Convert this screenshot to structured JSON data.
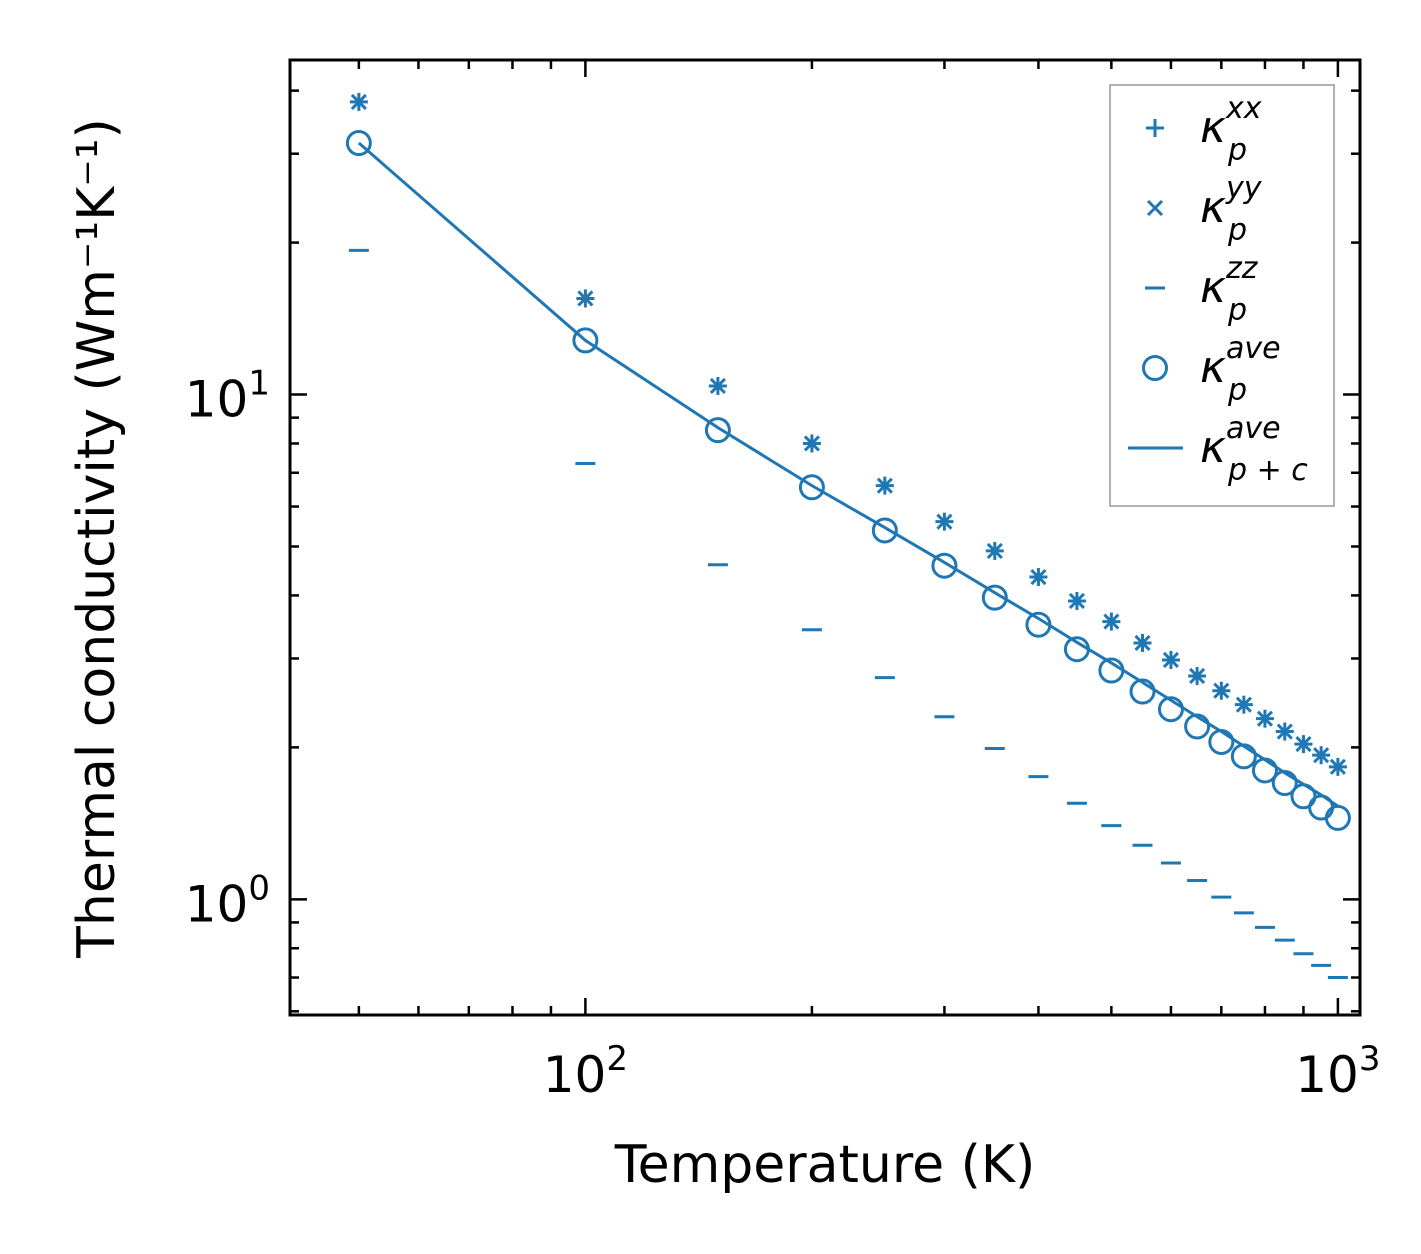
{
  "chart_data": {
    "type": "scatter",
    "xlabel": "Temperature (K)",
    "ylabel": "Thermal conductivity (Wm⁻¹K⁻¹)",
    "xscale": "log",
    "yscale": "log",
    "xlim": [
      40.5,
      1070
    ],
    "ylim": [
      0.59,
      46
    ],
    "x_ticks": [
      {
        "value": 100,
        "base": "10",
        "exp": "2"
      },
      {
        "value": 1000,
        "base": "10",
        "exp": "3"
      }
    ],
    "y_ticks": [
      {
        "value": 1,
        "base": "10",
        "exp": "0"
      },
      {
        "value": 10,
        "base": "10",
        "exp": "1"
      }
    ],
    "color": "#1f77b4",
    "x": [
      50,
      100,
      150,
      200,
      250,
      300,
      350,
      400,
      450,
      500,
      550,
      600,
      650,
      700,
      750,
      800,
      850,
      900,
      950,
      1000
    ],
    "series": [
      {
        "name": "kappa_p^xx",
        "label_base": "κ",
        "label_sup": "xx",
        "label_sub": "p",
        "marker": "plus",
        "values": [
          38,
          15.5,
          10.4,
          8.0,
          6.6,
          5.6,
          4.9,
          4.35,
          3.9,
          3.55,
          3.22,
          2.98,
          2.77,
          2.59,
          2.43,
          2.28,
          2.15,
          2.03,
          1.93,
          1.83
        ]
      },
      {
        "name": "kappa_p^yy",
        "label_base": "κ",
        "label_sup": "yy",
        "label_sub": "p",
        "marker": "x",
        "values": [
          38,
          15.5,
          10.4,
          8.0,
          6.6,
          5.6,
          4.9,
          4.35,
          3.9,
          3.55,
          3.22,
          2.98,
          2.77,
          2.59,
          2.43,
          2.28,
          2.15,
          2.03,
          1.93,
          1.83
        ]
      },
      {
        "name": "kappa_p^zz",
        "label_base": "κ",
        "label_sup": "zz",
        "label_sub": "p",
        "marker": "hline",
        "values": [
          19.3,
          7.3,
          4.6,
          3.42,
          2.75,
          2.3,
          1.99,
          1.75,
          1.55,
          1.4,
          1.28,
          1.18,
          1.09,
          1.01,
          0.94,
          0.88,
          0.83,
          0.78,
          0.74,
          0.7
        ]
      },
      {
        "name": "kappa_p^ave",
        "label_base": "κ",
        "label_sup": "ave",
        "label_sub": "p",
        "marker": "circle",
        "values": [
          31.5,
          12.8,
          8.5,
          6.55,
          5.38,
          4.58,
          3.96,
          3.5,
          3.13,
          2.84,
          2.58,
          2.38,
          2.2,
          2.05,
          1.92,
          1.8,
          1.7,
          1.6,
          1.52,
          1.45
        ]
      },
      {
        "name": "kappa_p+c^ave",
        "label_base": "κ",
        "label_sup": "ave",
        "label_sub": "p + c",
        "marker": "line",
        "values": [
          31.5,
          12.8,
          8.6,
          6.6,
          5.45,
          4.65,
          4.05,
          3.6,
          3.23,
          2.94,
          2.69,
          2.48,
          2.3,
          2.15,
          2.01,
          1.89,
          1.78,
          1.69,
          1.61,
          1.53
        ]
      }
    ]
  }
}
